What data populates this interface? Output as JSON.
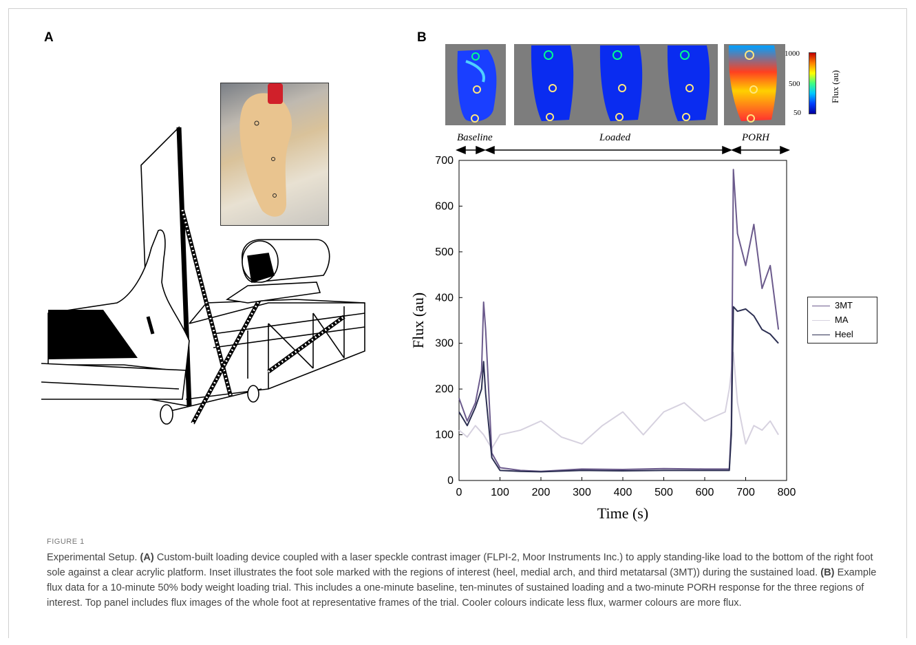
{
  "panels": {
    "a_label": "A",
    "b_label": "B"
  },
  "colorbar": {
    "ticks": [
      "1000",
      "500",
      "50"
    ],
    "label": "Flux (au)"
  },
  "phases": {
    "baseline": "Baseline",
    "loaded": "Loaded",
    "porh": "PORH"
  },
  "colors": {
    "mt3": "#6b5a8c",
    "ma": "#d6d1df",
    "heel": "#2c2f52"
  },
  "chart_data": {
    "type": "line",
    "xlabel": "Time (s)",
    "ylabel": "Flux (au)",
    "xlim": [
      0,
      800
    ],
    "ylim": [
      0,
      700
    ],
    "xticks": [
      0,
      100,
      200,
      300,
      400,
      500,
      600,
      700,
      800
    ],
    "yticks": [
      0,
      100,
      200,
      300,
      400,
      500,
      600,
      700
    ],
    "legend_position": "right",
    "series": [
      {
        "name": "3MT",
        "color": "#6b5a8c",
        "x": [
          0,
          20,
          40,
          55,
          60,
          65,
          80,
          100,
          150,
          200,
          300,
          400,
          500,
          600,
          660,
          665,
          670,
          680,
          700,
          720,
          740,
          760,
          780
        ],
        "y": [
          180,
          130,
          170,
          240,
          390,
          330,
          60,
          28,
          22,
          20,
          25,
          24,
          26,
          25,
          25,
          120,
          680,
          540,
          470,
          560,
          420,
          470,
          330
        ]
      },
      {
        "name": "MA",
        "color": "#d6d1df",
        "x": [
          0,
          20,
          40,
          60,
          80,
          100,
          150,
          200,
          250,
          300,
          350,
          400,
          450,
          500,
          550,
          600,
          650,
          660,
          670,
          680,
          700,
          720,
          740,
          760,
          780
        ],
        "y": [
          110,
          95,
          120,
          100,
          70,
          100,
          110,
          130,
          95,
          80,
          120,
          150,
          100,
          150,
          170,
          130,
          150,
          200,
          280,
          170,
          80,
          120,
          110,
          130,
          100
        ]
      },
      {
        "name": "Heel",
        "color": "#2c2f52",
        "x": [
          0,
          20,
          40,
          55,
          60,
          65,
          80,
          100,
          150,
          200,
          300,
          400,
          500,
          600,
          660,
          665,
          670,
          680,
          700,
          720,
          740,
          760,
          780
        ],
        "y": [
          150,
          120,
          160,
          200,
          260,
          190,
          50,
          22,
          20,
          19,
          22,
          21,
          22,
          22,
          22,
          100,
          380,
          370,
          375,
          360,
          330,
          320,
          300
        ]
      }
    ]
  },
  "caption": {
    "label": "FIGURE 1",
    "intro": "Experimental Setup.",
    "a_bold": "(A)",
    "a_text": "Custom-built loading device coupled with a laser speckle contrast imager (FLPI-2, Moor Instruments Inc.) to apply standing-like load to the bottom of the right foot sole against a clear acrylic platform. Inset illustrates the foot sole marked with the regions of interest (heel, medial arch, and third metatarsal (3MT)) during the sustained load.",
    "b_bold": "(B)",
    "b_text": "Example flux data for a 10-minute 50% body weight loading trial. This includes a one-minute baseline, ten-minutes of sustained loading and a two-minute PORH response for the three regions of interest. Top panel includes flux images of the whole foot at representative frames of the trial. Cooler colours indicate less flux, warmer colours are more flux."
  }
}
